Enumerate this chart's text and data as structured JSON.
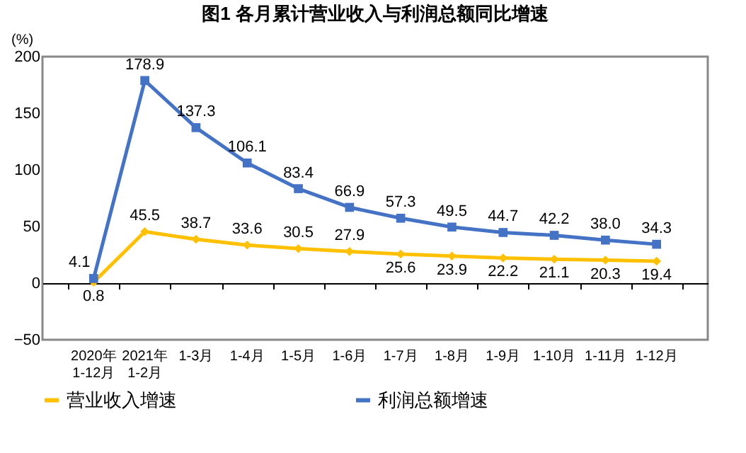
{
  "chart_data": {
    "type": "line",
    "title": "图1  各月累计营业收入与利润总额同比增速",
    "ylabel": "(%)",
    "categories": [
      "2020年\n1-12月",
      "2021年\n1-2月",
      "1-3月",
      "1-4月",
      "1-5月",
      "1-6月",
      "1-7月",
      "1-8月",
      "1-9月",
      "1-10月",
      "1-11月",
      "1-12月"
    ],
    "series": [
      {
        "name": "营业收入增速",
        "color": "#ffc000",
        "marker": "diamond",
        "values": [
          0.8,
          45.5,
          38.7,
          33.6,
          30.5,
          27.9,
          25.6,
          23.9,
          22.2,
          21.1,
          20.3,
          19.4
        ],
        "value_labels": [
          "0.8",
          "45.5",
          "38.7",
          "33.6",
          "30.5",
          "27.9",
          "25.6",
          "23.9",
          "22.2",
          "21.1",
          "20.3",
          "19.4"
        ]
      },
      {
        "name": "利润总额增速",
        "color": "#4472c4",
        "marker": "square",
        "values": [
          4.1,
          178.9,
          137.3,
          106.1,
          83.4,
          66.9,
          57.3,
          49.5,
          44.7,
          42.2,
          38.0,
          34.3
        ],
        "value_labels": [
          "4.1",
          "178.9",
          "137.3",
          "106.1",
          "83.4",
          "66.9",
          "57.3",
          "49.5",
          "44.7",
          "42.2",
          "38.0",
          "34.3"
        ]
      }
    ],
    "ylim": [
      -50,
      200
    ],
    "yticks": [
      -50,
      0,
      50,
      100,
      150,
      200
    ],
    "ref_lines": [
      {
        "axis": "y",
        "value": 0,
        "color": "#000000"
      }
    ],
    "legend": "bottom"
  }
}
